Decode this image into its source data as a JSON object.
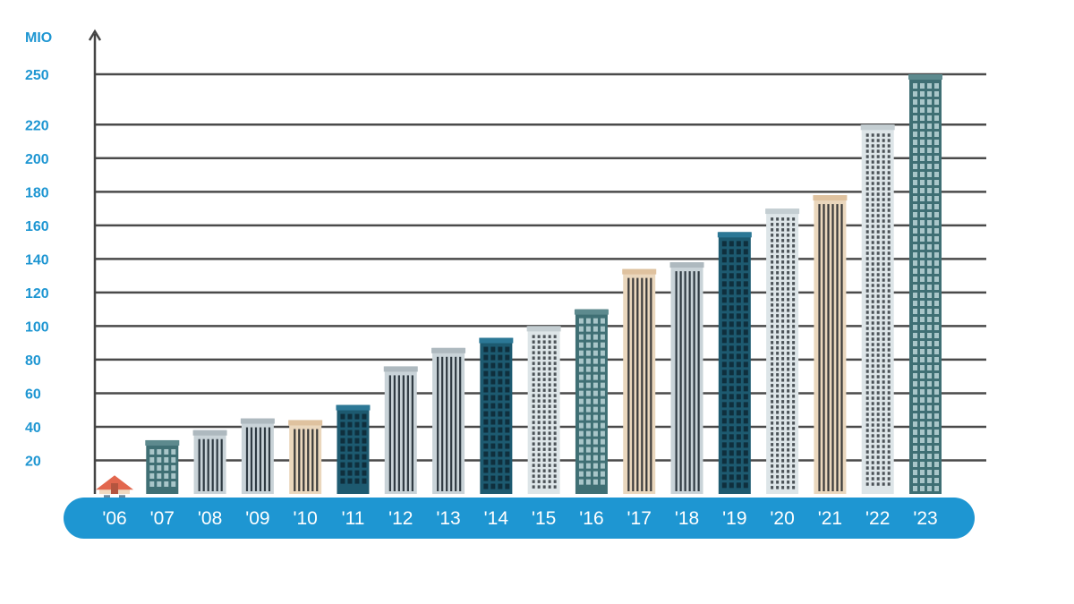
{
  "colors": {
    "accent": "#1e96d2",
    "axis": "#444444",
    "grid": "#4a4a4a",
    "tick_text": "#1e96d2",
    "building_palette": {
      "slate": "#c9d3d8",
      "teal": "#3f6f74",
      "navy": "#1d5a70",
      "beige": "#ead7bd",
      "pale": "#dde5e8"
    }
  },
  "chart_data": {
    "type": "bar",
    "unit_label": "MIO",
    "categories": [
      "'06",
      "'07",
      "'08",
      "'09",
      "'10",
      "'11",
      "'12",
      "'13",
      "'14",
      "'15",
      "'16",
      "'17",
      "'18",
      "'19",
      "'20",
      "'21",
      "'22",
      "'23"
    ],
    "values": [
      10,
      32,
      38,
      45,
      44,
      53,
      76,
      87,
      93,
      100,
      110,
      134,
      138,
      156,
      170,
      178,
      220,
      250
    ],
    "styles": [
      "house",
      "teal",
      "slate",
      "slate",
      "beige",
      "navy",
      "slate",
      "slate",
      "navy",
      "pale",
      "teal",
      "beige",
      "slate",
      "navy",
      "pale",
      "beige",
      "pale",
      "teal"
    ],
    "y_ticks": [
      20,
      40,
      60,
      80,
      100,
      120,
      140,
      160,
      180,
      200,
      220,
      250
    ],
    "ylim": [
      0,
      250
    ],
    "grid": true,
    "legend": "none"
  }
}
